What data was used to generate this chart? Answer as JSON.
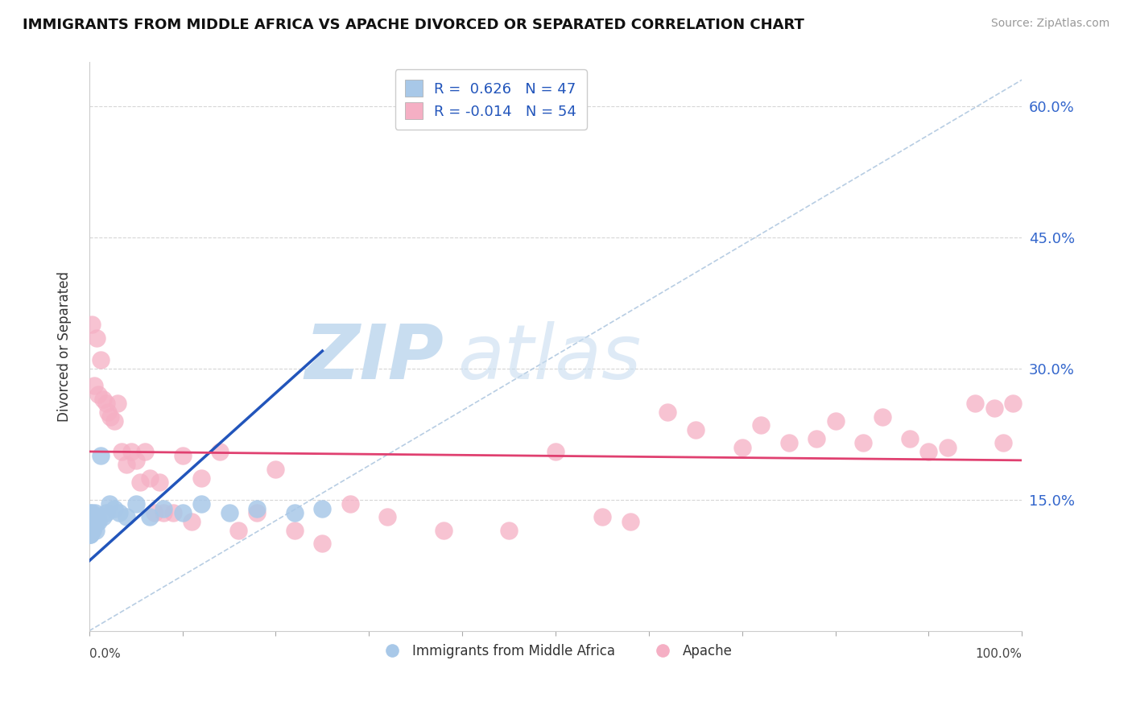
{
  "title": "IMMIGRANTS FROM MIDDLE AFRICA VS APACHE DIVORCED OR SEPARATED CORRELATION CHART",
  "source": "Source: ZipAtlas.com",
  "ylabel": "Divorced or Separated",
  "legend_blue_label": "Immigrants from Middle Africa",
  "legend_pink_label": "Apache",
  "legend_blue_R": "0.626",
  "legend_blue_N": "47",
  "legend_pink_R": "-0.014",
  "legend_pink_N": "54",
  "blue_color": "#a8c8e8",
  "pink_color": "#f5afc4",
  "blue_line_color": "#2255bb",
  "pink_line_color": "#e04070",
  "diagonal_color": "#b0c8e0",
  "grid_color": "#cccccc",
  "background_color": "#ffffff",
  "text_color": "#333333",
  "source_color": "#999999",
  "right_tick_color": "#3366cc",
  "ylim_min": 0,
  "ylim_max": 65,
  "xlim_min": 0,
  "xlim_max": 100,
  "ytick_vals": [
    15,
    30,
    45,
    60
  ],
  "ytick_labels": [
    "15.0%",
    "30.0%",
    "45.0%",
    "60.0%"
  ],
  "blue_x": [
    0.02,
    0.03,
    0.04,
    0.05,
    0.06,
    0.07,
    0.08,
    0.09,
    0.1,
    0.11,
    0.12,
    0.13,
    0.15,
    0.17,
    0.19,
    0.21,
    0.25,
    0.3,
    0.35,
    0.4,
    0.5,
    0.6,
    0.7,
    0.85,
    1.0,
    1.2,
    1.5,
    1.8,
    2.2,
    2.7,
    3.2,
    4.0,
    5.0,
    6.5,
    8.0,
    10.0,
    12.0,
    15.0,
    18.0,
    22.0,
    0.04,
    0.08,
    0.14,
    0.22,
    0.45,
    0.8,
    25.0
  ],
  "blue_y": [
    11.0,
    12.5,
    11.5,
    13.0,
    12.0,
    11.0,
    13.5,
    12.0,
    11.5,
    13.0,
    12.5,
    11.0,
    13.0,
    12.5,
    11.5,
    13.0,
    12.0,
    13.5,
    11.5,
    13.0,
    12.0,
    13.5,
    11.5,
    13.0,
    12.5,
    20.0,
    13.0,
    13.5,
    14.5,
    14.0,
    13.5,
    13.0,
    14.5,
    13.0,
    14.0,
    13.5,
    14.5,
    13.5,
    14.0,
    13.5,
    12.0,
    12.5,
    12.0,
    12.5,
    13.0,
    12.5,
    14.0
  ],
  "pink_x": [
    0.3,
    0.5,
    0.8,
    1.0,
    1.2,
    1.5,
    1.8,
    2.0,
    2.3,
    2.7,
    3.0,
    3.5,
    4.0,
    4.5,
    5.0,
    5.5,
    6.0,
    6.5,
    7.0,
    7.5,
    8.0,
    9.0,
    10.0,
    11.0,
    12.0,
    14.0,
    16.0,
    18.0,
    20.0,
    22.0,
    25.0,
    28.0,
    32.0,
    38.0,
    45.0,
    50.0,
    55.0,
    58.0,
    62.0,
    65.0,
    70.0,
    72.0,
    75.0,
    78.0,
    80.0,
    83.0,
    85.0,
    88.0,
    90.0,
    92.0,
    95.0,
    97.0,
    98.0,
    99.0
  ],
  "pink_y": [
    35.0,
    28.0,
    33.5,
    27.0,
    31.0,
    26.5,
    26.0,
    25.0,
    24.5,
    24.0,
    26.0,
    20.5,
    19.0,
    20.5,
    19.5,
    17.0,
    20.5,
    17.5,
    13.5,
    17.0,
    13.5,
    13.5,
    20.0,
    12.5,
    17.5,
    20.5,
    11.5,
    13.5,
    18.5,
    11.5,
    10.0,
    14.5,
    13.0,
    11.5,
    11.5,
    20.5,
    13.0,
    12.5,
    25.0,
    23.0,
    21.0,
    23.5,
    21.5,
    22.0,
    24.0,
    21.5,
    24.5,
    22.0,
    20.5,
    21.0,
    26.0,
    25.5,
    21.5,
    26.0
  ],
  "blue_trend_x0": 0.0,
  "blue_trend_x1": 25.0,
  "pink_trend_x0": 0.0,
  "pink_trend_x1": 100.0,
  "pink_trend_y0": 20.5,
  "pink_trend_y1": 19.5
}
